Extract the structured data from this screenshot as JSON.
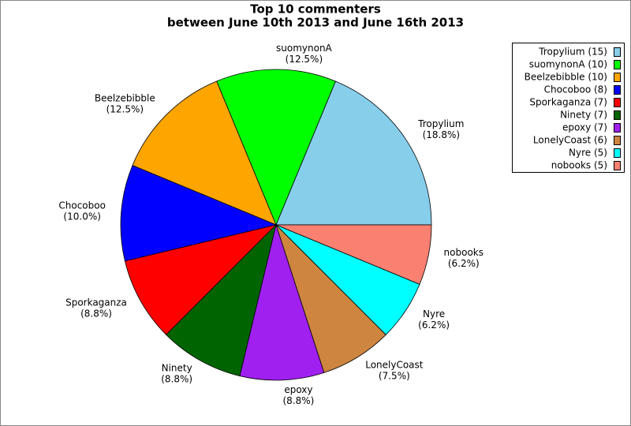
{
  "chart_data": {
    "type": "pie",
    "title": "Top 10 commenters",
    "subtitle": "between June 10th 2013 and June 16th 2013",
    "categories": [
      "Tropylium",
      "suomynonA",
      "Beelzebibble",
      "Chocoboo",
      "Sporkaganza",
      "Ninety",
      "epoxy",
      "LonelyCoast",
      "Nyre",
      "nobooks"
    ],
    "values": [
      15,
      10,
      10,
      8,
      7,
      7,
      7,
      6,
      5,
      5
    ],
    "percent_labels": [
      "(18.8%)",
      "(12.5%)",
      "(12.5%)",
      "(10.0%)",
      "(8.8%)",
      "(8.8%)",
      "(8.8%)",
      "(7.5%)",
      "(6.2%)",
      "(6.2%)"
    ],
    "legend_labels": [
      "Tropylium (15)",
      "suomynonA (10)",
      "Beelzebibble (10)",
      "Chocoboo (8)",
      "Sporkaganza (7)",
      "Ninety (7)",
      "epoxy (7)",
      "LonelyCoast (6)",
      "Nyre (5)",
      "nobooks (5)"
    ],
    "colors": [
      "#87ceeb",
      "#00ff00",
      "#ffa500",
      "#0000ff",
      "#ff0000",
      "#006400",
      "#a020f0",
      "#cd853f",
      "#00ffff",
      "#fa8072"
    ],
    "legend": "upper right"
  }
}
